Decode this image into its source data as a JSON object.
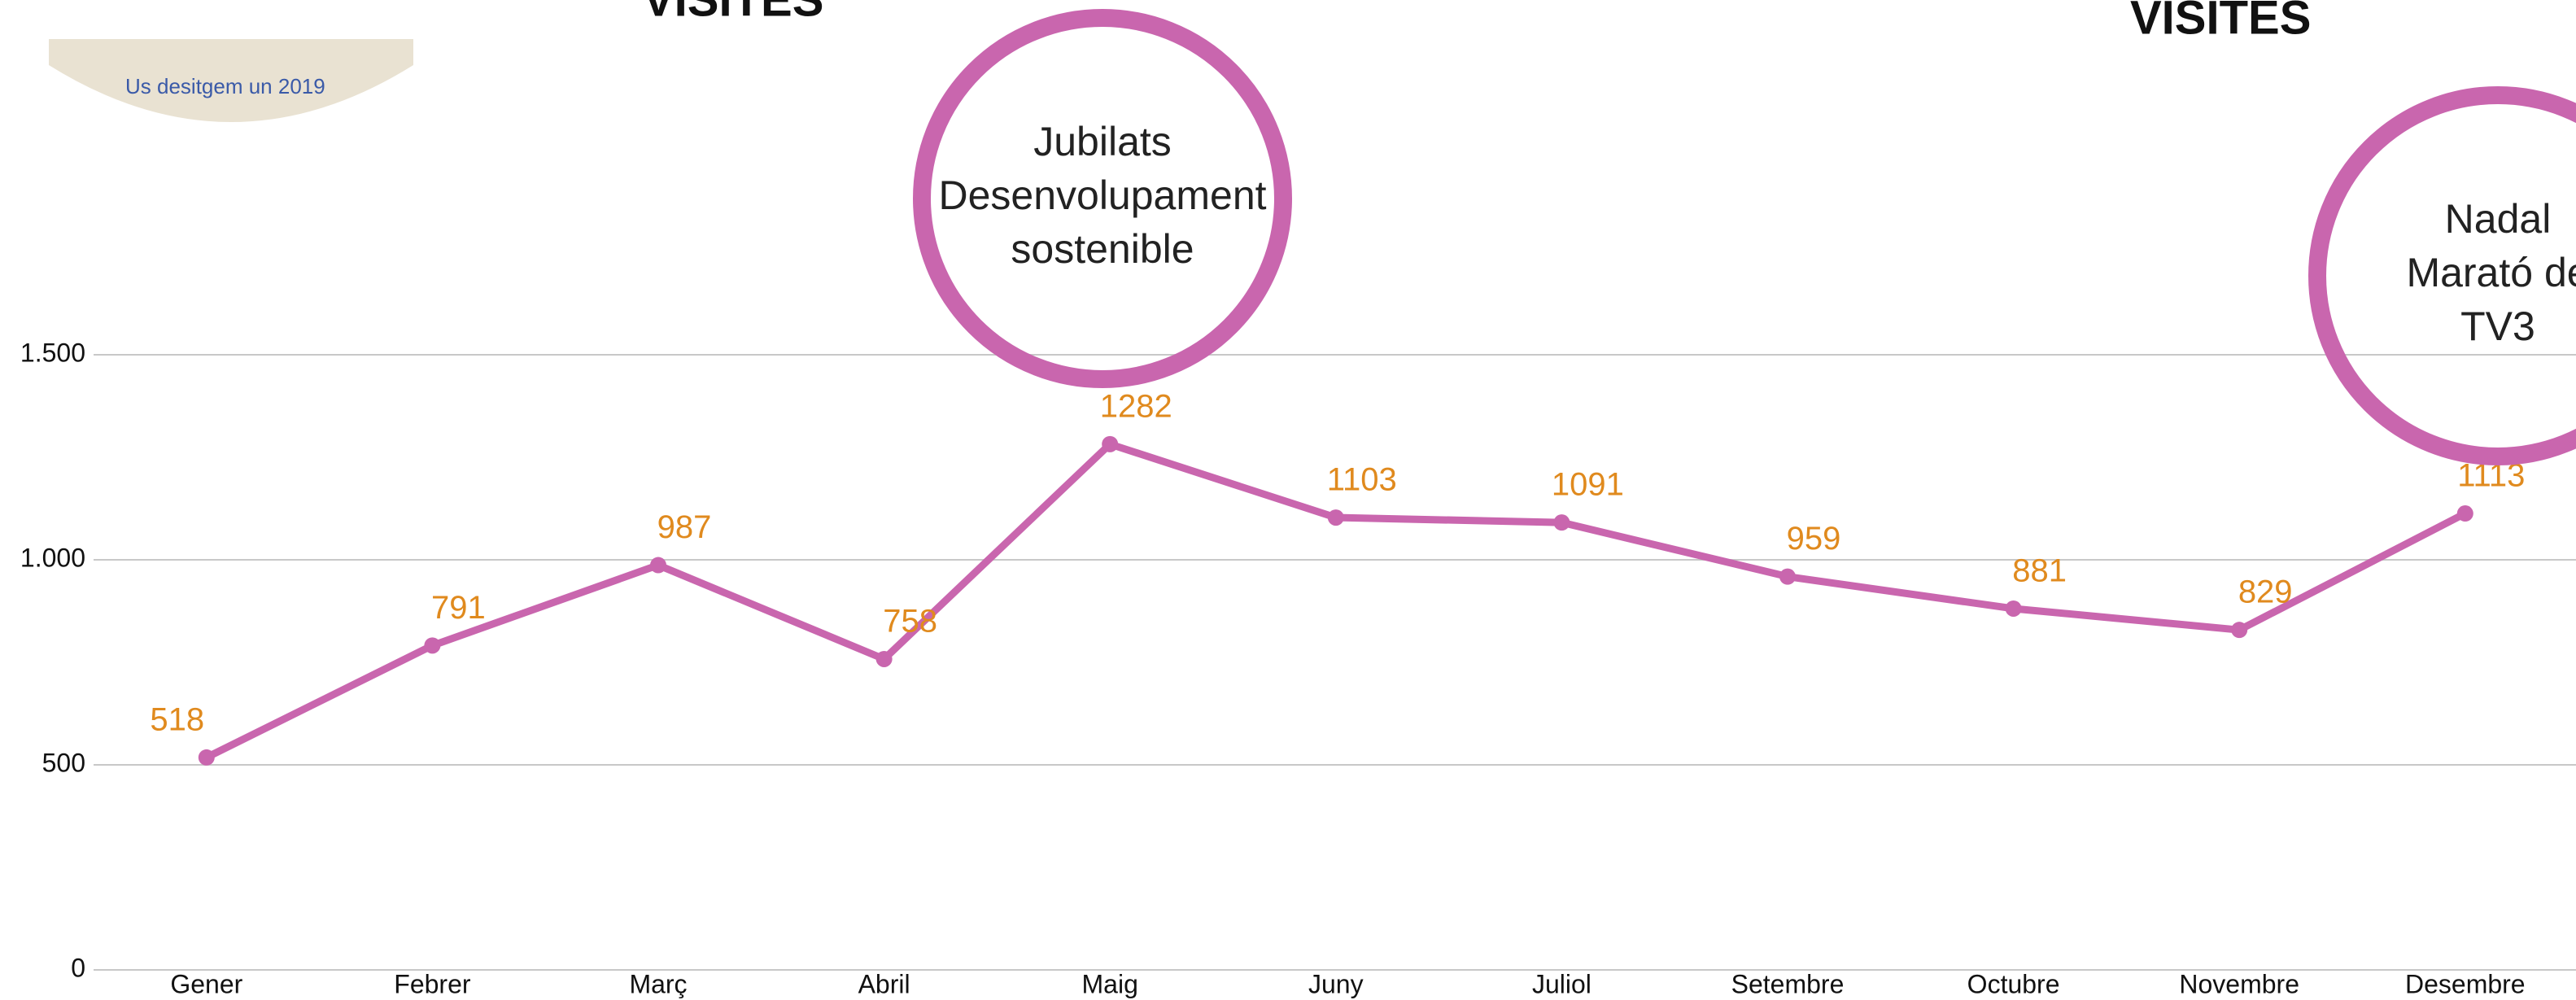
{
  "chart_data": {
    "type": "line",
    "categories": [
      "Gener",
      "Febrer",
      "Març",
      "Abril",
      "Maig",
      "Juny",
      "Juliol",
      "Setembre",
      "Octubre",
      "Novembre",
      "Desembre"
    ],
    "series": [
      {
        "name": "Visites",
        "color": "#c966ae",
        "label_color": "#e08a1e",
        "values": [
          518,
          791,
          987,
          758,
          1282,
          1103,
          1091,
          959,
          881,
          829,
          1113
        ]
      }
    ],
    "ylim": [
      0,
      1500
    ],
    "yticks": [
      0,
      500,
      {
        "value": 1000,
        "label": "1.000"
      },
      {
        "value": 1500,
        "label": "1.500"
      }
    ],
    "grid": true,
    "annotations": [
      {
        "lines": [
          "Jubilats",
          "Desenvolupament",
          "sostenible"
        ]
      },
      {
        "lines": [
          "Nadal",
          "Marató de",
          "TV3"
        ]
      }
    ]
  },
  "header": {
    "titles": [
      "VISITES",
      "VISITES"
    ],
    "thumbnail_text": "Us desitgem un 2019"
  }
}
